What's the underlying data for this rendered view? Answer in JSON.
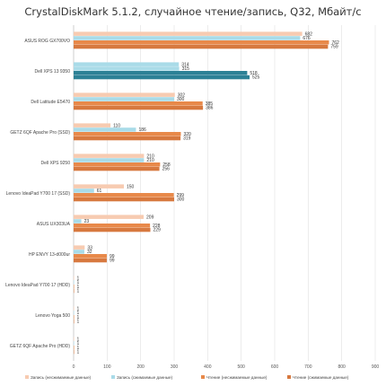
{
  "chart_data": {
    "type": "bar",
    "orientation": "horizontal",
    "title": "CrystalDiskMark 5.1.2, случайное чтение/запись, Q32, Мбайт/с",
    "xlabel": "",
    "ylabel": "",
    "xlim": [
      0,
      900
    ],
    "xticks": [
      "0",
      "100",
      "200",
      "300",
      "400",
      "500",
      "600",
      "700",
      "800",
      "900"
    ],
    "grid": true,
    "legend": "bottom",
    "categories": [
      "ASUS ROG GX700VO",
      "Dell XPS 13 9350",
      "Dell Latitude E5470",
      "GETZ 6QF Apache Pro (SSD)",
      "Dell XPS 9250",
      "Lenovo IdeaPad Y700 17 (SSD)",
      "ASUS UX303UA",
      "HP ENVY 13-d000ur",
      "Lenovo IdeaPad Y700 17 (HDD)",
      "Lenovo Yoga 500",
      "GETZ 6QF Apache Pro (HDD)"
    ],
    "series": [
      {
        "name": "Запись (несжимаемые данные)",
        "color": "#f7cbb1",
        "values": [
          682,
          314,
          302,
          110,
          210,
          150,
          209,
          33,
          1,
          1,
          1
        ]
      },
      {
        "name": "Запись (сжимаемые данные)",
        "color": "#a9dbe8",
        "values": [
          676,
          315,
          300,
          186,
          210,
          61,
          23,
          32,
          1,
          1,
          1
        ]
      },
      {
        "name": "Чтение (несжимаемые данные)",
        "color": "#e8894a",
        "values": [
          762,
          518,
          385,
          320,
          258,
          299,
          228,
          99,
          1,
          1,
          1
        ]
      },
      {
        "name": "Чтение (сжимаемые данные)",
        "color": "#d7793f",
        "values": [
          759,
          525,
          386,
          319,
          256,
          300,
          229,
          99,
          1,
          1,
          1
        ]
      }
    ],
    "highlight": {
      "category": "Dell XPS 13 9350",
      "colors": [
        "#a9dbe8",
        "#a9dbe8",
        "#2d8196",
        "#2d8196"
      ]
    }
  }
}
